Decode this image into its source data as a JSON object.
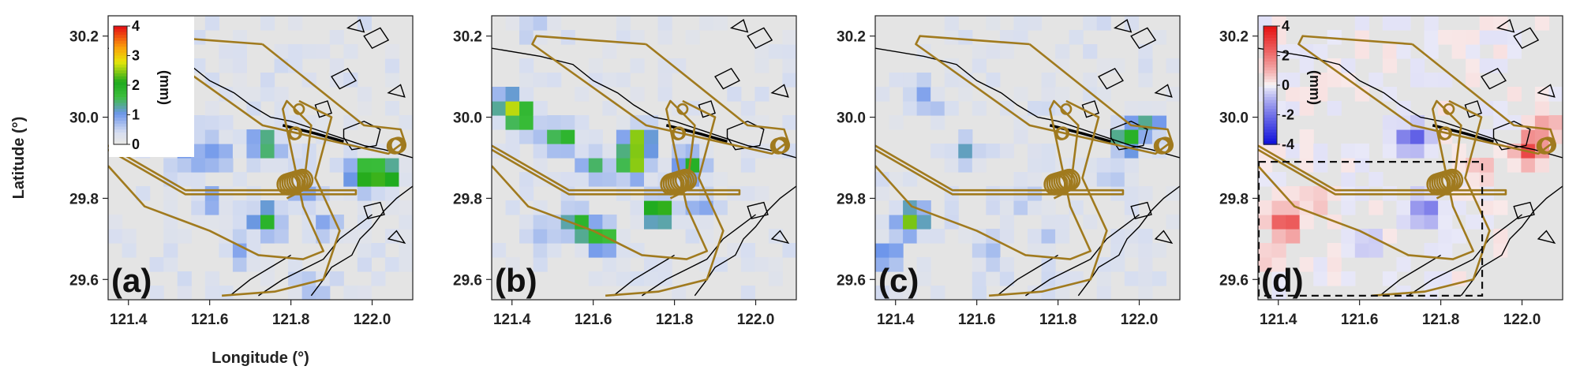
{
  "chart_data": [
    {
      "type": "heatmap",
      "panel_label": "(a)",
      "xlabel": "Longitude (°)",
      "ylabel": "Latitude (°)",
      "xlim": [
        121.35,
        122.1
      ],
      "ylim": [
        29.55,
        30.25
      ],
      "x_ticks": [
        "121.4",
        "121.6",
        "121.8",
        "122.0"
      ],
      "y_ticks": [
        "29.6",
        "29.8",
        "30.0",
        "30.2"
      ],
      "colorbar": {
        "min": 0,
        "max": 4,
        "ticks": [
          "0",
          "1",
          "2",
          "3",
          "4"
        ],
        "unit": "(mm)",
        "colormap": "white-blue-green-yellow-red"
      },
      "hotspots": [
        {
          "lon": 121.45,
          "lat": 30.0,
          "value": 0.7
        },
        {
          "lon": 121.55,
          "lat": 29.9,
          "value": 0.8
        },
        {
          "lon": 121.62,
          "lat": 29.91,
          "value": 1.1
        },
        {
          "lon": 121.74,
          "lat": 29.93,
          "value": 1.6
        },
        {
          "lon": 121.74,
          "lat": 29.75,
          "value": 1.8
        },
        {
          "lon": 121.6,
          "lat": 29.79,
          "value": 0.9
        },
        {
          "lon": 121.67,
          "lat": 29.68,
          "value": 0.8
        },
        {
          "lon": 121.83,
          "lat": 29.81,
          "value": 1.0
        },
        {
          "lon": 121.88,
          "lat": 29.73,
          "value": 0.8
        },
        {
          "lon": 122.03,
          "lat": 29.86,
          "value": 2.6
        },
        {
          "lon": 121.97,
          "lat": 29.86,
          "value": 1.8
        },
        {
          "lon": 121.85,
          "lat": 29.58,
          "value": 0.7
        }
      ]
    },
    {
      "type": "heatmap",
      "panel_label": "(b)",
      "xlim": [
        121.35,
        122.1
      ],
      "ylim": [
        29.55,
        30.25
      ],
      "x_ticks": [
        "121.4",
        "121.6",
        "121.8",
        "122.0"
      ],
      "y_ticks": [
        "29.6",
        "29.8",
        "30.0",
        "30.2"
      ],
      "hotspots": [
        {
          "lon": 121.39,
          "lat": 30.03,
          "value": 2.0
        },
        {
          "lon": 121.43,
          "lat": 30.0,
          "value": 1.6
        },
        {
          "lon": 121.52,
          "lat": 29.95,
          "value": 1.9
        },
        {
          "lon": 121.6,
          "lat": 29.88,
          "value": 1.5
        },
        {
          "lon": 121.71,
          "lat": 29.94,
          "value": 2.8
        },
        {
          "lon": 121.7,
          "lat": 29.88,
          "value": 2.0
        },
        {
          "lon": 121.76,
          "lat": 29.77,
          "value": 2.8
        },
        {
          "lon": 121.84,
          "lat": 29.88,
          "value": 2.0
        },
        {
          "lon": 121.56,
          "lat": 29.74,
          "value": 1.8
        },
        {
          "lon": 121.62,
          "lat": 29.7,
          "value": 2.0
        },
        {
          "lon": 121.48,
          "lat": 29.72,
          "value": 0.8
        },
        {
          "lon": 121.86,
          "lat": 29.78,
          "value": 0.9
        },
        {
          "lon": 121.44,
          "lat": 30.22,
          "value": 0.5
        }
      ]
    },
    {
      "type": "heatmap",
      "panel_label": "(c)",
      "xlim": [
        121.35,
        122.1
      ],
      "ylim": [
        29.55,
        30.25
      ],
      "x_ticks": [
        "121.4",
        "121.6",
        "121.8",
        "122.0"
      ],
      "y_ticks": [
        "29.6",
        "29.8",
        "30.0",
        "30.2"
      ],
      "hotspots": [
        {
          "lon": 121.44,
          "lat": 29.75,
          "value": 2.2
        },
        {
          "lon": 121.38,
          "lat": 29.66,
          "value": 1.3
        },
        {
          "lon": 121.47,
          "lat": 30.04,
          "value": 0.7
        },
        {
          "lon": 121.57,
          "lat": 29.91,
          "value": 0.9
        },
        {
          "lon": 121.71,
          "lat": 29.79,
          "value": 0.6
        },
        {
          "lon": 121.78,
          "lat": 29.71,
          "value": 0.6
        },
        {
          "lon": 121.62,
          "lat": 29.68,
          "value": 0.6
        },
        {
          "lon": 121.97,
          "lat": 29.95,
          "value": 1.9
        },
        {
          "lon": 122.03,
          "lat": 29.98,
          "value": 1.0
        },
        {
          "lon": 121.93,
          "lat": 29.86,
          "value": 0.7
        }
      ]
    },
    {
      "type": "heatmap",
      "panel_label": "(d)",
      "xlim": [
        121.35,
        122.1
      ],
      "ylim": [
        29.55,
        30.25
      ],
      "x_ticks": [
        "121.4",
        "121.6",
        "121.8",
        "122.0"
      ],
      "y_ticks": [
        "29.6",
        "29.8",
        "30.0",
        "30.2"
      ],
      "colorbar": {
        "min": -4,
        "max": 4,
        "ticks": [
          "-4",
          "-2",
          "0",
          "2",
          "4"
        ],
        "unit": "(mm)",
        "colormap": "blue-white-red"
      },
      "dashed_box": {
        "lon": [
          121.35,
          121.9
        ],
        "lat": [
          29.56,
          29.89
        ]
      },
      "hotspots": [
        {
          "lon": 121.42,
          "lat": 29.74,
          "value": 3.0
        },
        {
          "lon": 121.5,
          "lat": 29.8,
          "value": 0.8
        },
        {
          "lon": 121.37,
          "lat": 29.65,
          "value": 0.8
        },
        {
          "lon": 121.73,
          "lat": 29.95,
          "value": -2.5
        },
        {
          "lon": 121.76,
          "lat": 29.77,
          "value": -2.2
        },
        {
          "lon": 121.62,
          "lat": 29.7,
          "value": -0.8
        },
        {
          "lon": 121.9,
          "lat": 29.87,
          "value": 0.9
        },
        {
          "lon": 122.02,
          "lat": 29.92,
          "value": 3.0
        },
        {
          "lon": 122.06,
          "lat": 29.98,
          "value": 1.2
        }
      ]
    }
  ],
  "colors": {
    "background": "#e4e4e4",
    "flight_track": "#a07a1e",
    "coastline": "#000000"
  }
}
